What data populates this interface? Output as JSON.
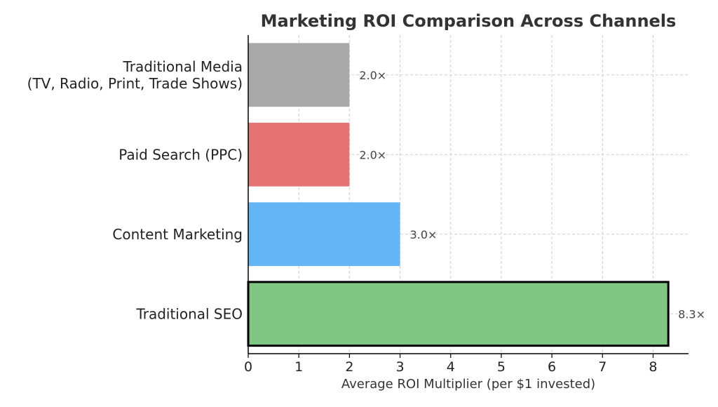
{
  "chart_data": {
    "type": "bar",
    "orientation": "horizontal",
    "title": "Marketing ROI Comparison Across Channels",
    "xlabel": "Average ROI Multiplier (per $1 invested)",
    "ylabel": "",
    "xlim": [
      0,
      8.7
    ],
    "xticks": [
      0,
      1,
      2,
      3,
      4,
      5,
      6,
      7,
      8
    ],
    "grid": true,
    "categories": [
      [
        "Traditional Media",
        "(TV, Radio, Print, Trade Shows)"
      ],
      [
        "Paid Search (PPC)"
      ],
      [
        "Content Marketing"
      ],
      [
        "Traditional SEO"
      ]
    ],
    "values": [
      2.0,
      2.0,
      3.0,
      8.3
    ],
    "value_labels": [
      "2.0×",
      "2.0×",
      "3.0×",
      "8.3×"
    ],
    "colors": [
      "#a9a9a9",
      "#e57373",
      "#64b5f6",
      "#81c784"
    ],
    "highlighted_index": 3
  }
}
